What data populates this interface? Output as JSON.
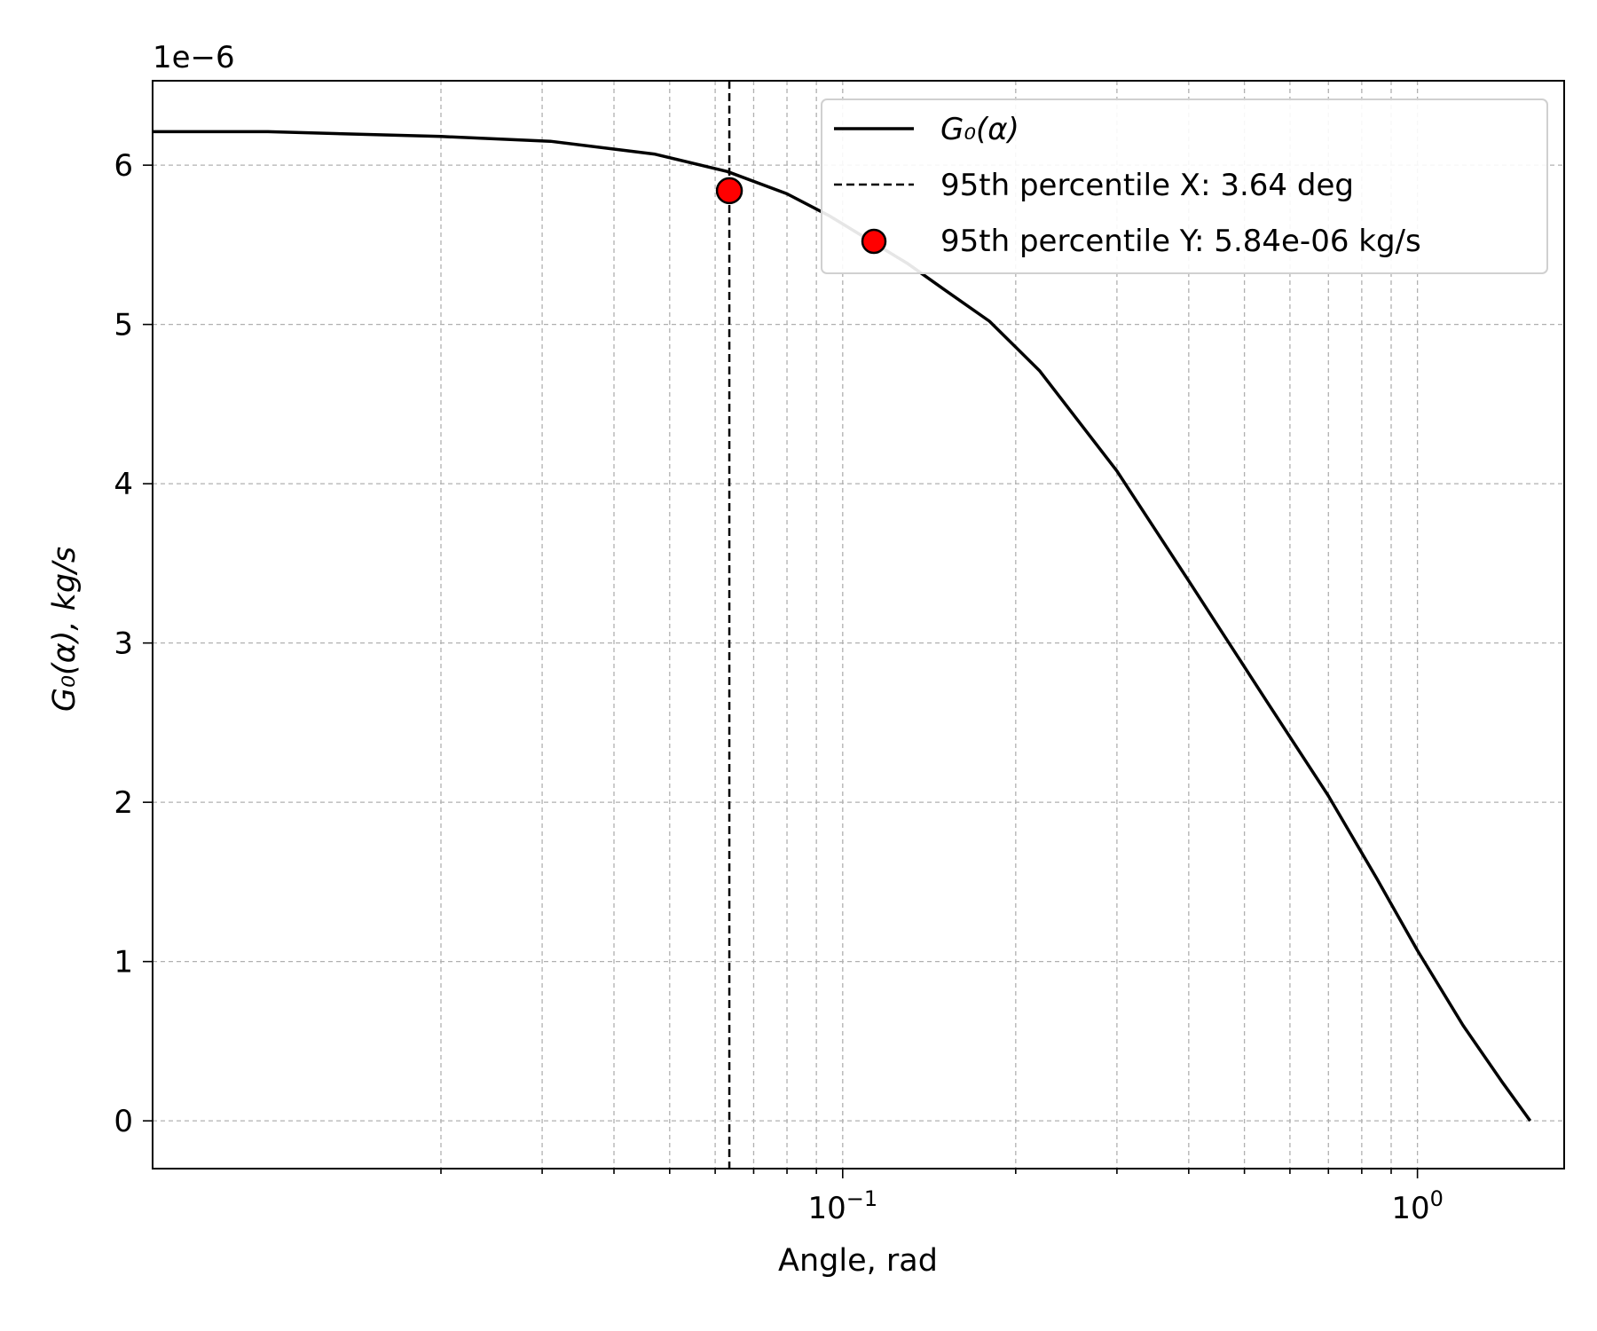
{
  "chart_data": {
    "type": "line",
    "xlabel": "Angle, rad",
    "ylabel": "G₀(α), kg/s",
    "y_offset_label": "1e−6",
    "x_scale": "log",
    "xlim": [
      0.0063,
      1.8
    ],
    "ylim": [
      -0.3,
      6.53
    ],
    "y_multiplier": 1e-06,
    "grid": true,
    "grid_style": "dashed",
    "legend_position": "top-right",
    "x_major_ticks": [
      {
        "value": 0.1,
        "base": "10",
        "exp": "−1"
      },
      {
        "value": 1.0,
        "base": "10",
        "exp": "0"
      }
    ],
    "x_minor_ticks": [
      0.02,
      0.03,
      0.04,
      0.05,
      0.06,
      0.07,
      0.08,
      0.09,
      0.2,
      0.3,
      0.4,
      0.5,
      0.6,
      0.7,
      0.8,
      0.9
    ],
    "y_ticks": [
      {
        "value": 0,
        "label": "0"
      },
      {
        "value": 1,
        "label": "1"
      },
      {
        "value": 2,
        "label": "2"
      },
      {
        "value": 3,
        "label": "3"
      },
      {
        "value": 4,
        "label": "4"
      },
      {
        "value": 5,
        "label": "5"
      },
      {
        "value": 6,
        "label": "6"
      }
    ],
    "series": [
      {
        "name": "G₀(α)",
        "kind": "line",
        "color": "#000000",
        "x": [
          0.0063,
          0.01,
          0.02,
          0.031,
          0.047,
          0.063,
          0.08,
          0.095,
          0.11,
          0.13,
          0.15,
          0.18,
          0.22,
          0.3,
          0.4,
          0.55,
          0.7,
          0.85,
          1.0,
          1.2,
          1.4,
          1.5708
        ],
        "y": [
          6.21,
          6.21,
          6.18,
          6.15,
          6.07,
          5.96,
          5.82,
          5.68,
          5.54,
          5.38,
          5.22,
          5.02,
          4.71,
          4.08,
          3.39,
          2.62,
          2.04,
          1.52,
          1.07,
          0.6,
          0.25,
          0.0
        ]
      },
      {
        "name": "95th percentile X: 3.64 deg",
        "kind": "vline",
        "color": "#000000",
        "x": 0.0635
      },
      {
        "name": "95th percentile Y: 5.84e-06 kg/s",
        "kind": "point",
        "color": "#ff0000",
        "x": 0.0635,
        "y": 5.84
      }
    ]
  }
}
